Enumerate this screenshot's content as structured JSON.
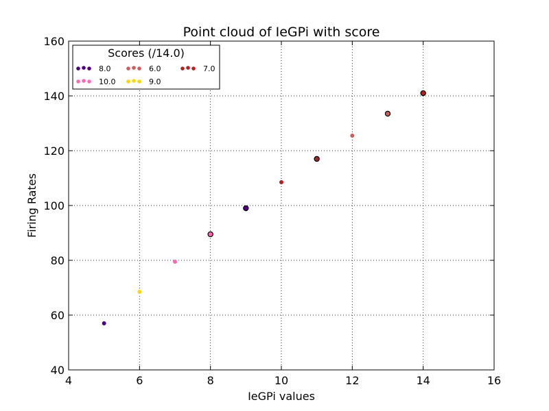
{
  "chart_data": {
    "type": "scatter",
    "title": "Point cloud of IeGPi with score",
    "xlabel": "IeGPi values",
    "ylabel": "Firing Rates",
    "xlim": [
      4,
      16
    ],
    "ylim": [
      40,
      160
    ],
    "xticks": [
      4,
      6,
      8,
      10,
      12,
      14,
      16
    ],
    "yticks": [
      40,
      60,
      80,
      100,
      120,
      140,
      160
    ],
    "grid": true,
    "legend": {
      "title": "Scores (/14.0)",
      "placement": "top-left",
      "entries": [
        {
          "label": "8.0",
          "color": "#4b0082"
        },
        {
          "label": "10.0",
          "color": "#ff69b4"
        },
        {
          "label": "6.0",
          "color": "#cd5c5c"
        },
        {
          "label": "9.0",
          "color": "#ffd700"
        },
        {
          "label": "7.0",
          "color": "#b22222"
        }
      ]
    },
    "series": [
      {
        "name": "8.0",
        "color": "#4b0082",
        "points": [
          {
            "x": 5,
            "y": 57
          },
          {
            "x": 9,
            "y": 99
          }
        ]
      },
      {
        "name": "9.0",
        "color": "#ffd700",
        "points": [
          {
            "x": 6,
            "y": 68.5
          }
        ]
      },
      {
        "name": "10.0",
        "color": "#ff69b4",
        "points": [
          {
            "x": 7,
            "y": 79.5
          },
          {
            "x": 8,
            "y": 89.5
          }
        ]
      },
      {
        "name": "7.0",
        "color": "#b22222",
        "points": [
          {
            "x": 10,
            "y": 108.5
          },
          {
            "x": 11,
            "y": 117
          },
          {
            "x": 14,
            "y": 141
          }
        ]
      },
      {
        "name": "6.0",
        "color": "#cd5c5c",
        "points": [
          {
            "x": 12,
            "y": 125.5
          },
          {
            "x": 13,
            "y": 133.5
          }
        ]
      }
    ],
    "outlined_points": [
      {
        "x": 8,
        "y": 89.5
      },
      {
        "x": 9,
        "y": 99
      },
      {
        "x": 11,
        "y": 117
      },
      {
        "x": 13,
        "y": 133.5
      },
      {
        "x": 14,
        "y": 141
      }
    ]
  }
}
